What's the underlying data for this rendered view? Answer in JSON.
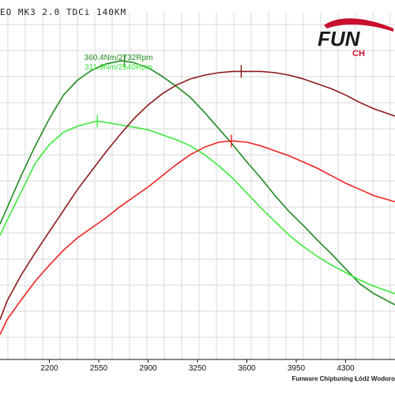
{
  "page": {
    "title": "EO MK3 2.0 TDCi 140KM",
    "logo_text_top": "FUN",
    "logo_text_bottom": "CH",
    "footer": "Funware Chiptuning Łódź Wodoro"
  },
  "colors": {
    "background": "#ffffff",
    "grid": "#d9d9d9",
    "tuned_torque": "#1f8a1f",
    "stock_torque": "#3ee83e",
    "tuned_power": "#8b1a1a",
    "stock_power": "#ee2222",
    "brand": "#c8102e"
  },
  "chart_data": {
    "type": "line",
    "title": "EO MK3 2.0 TDCi 140KM",
    "xlabel": "",
    "ylabel": "",
    "x_ticks": [
      2200,
      2550,
      2900,
      3250,
      3600,
      3950,
      4300
    ],
    "xlim": [
      1850,
      4650
    ],
    "grid": true,
    "peak_labels": [
      {
        "text": "360.4Nm/2732Rpm",
        "color": "#1f8a1f"
      },
      {
        "text": "311.9Nm/2540Rpm",
        "color": "#3ee83e"
      }
    ],
    "series": [
      {
        "name": "",
        "color": "#1f8a1f",
        "peak": [
          2732,
          360.4
        ],
        "x": [
          1850,
          1900,
          2000,
          2100,
          2200,
          2300,
          2400,
          2500,
          2600,
          2700,
          2732,
          2800,
          2900,
          3000,
          3100,
          3200,
          3300,
          3400,
          3500,
          3600,
          3700,
          3800,
          3900,
          4000,
          4100,
          4200,
          4300,
          4400,
          4500,
          4650
        ],
        "y": [
          229,
          242,
          268,
          292,
          314,
          333,
          345,
          353,
          358,
          360.4,
          360.4,
          359,
          355,
          348,
          340,
          331,
          319,
          306,
          293,
          279,
          266,
          252,
          239,
          228,
          216,
          205,
          193,
          181,
          173,
          164
        ]
      },
      {
        "name": "",
        "color": "#3ee83e",
        "peak": [
          2540,
          311.9
        ],
        "x": [
          1850,
          1900,
          2000,
          2100,
          2200,
          2300,
          2400,
          2500,
          2540,
          2600,
          2700,
          2800,
          2900,
          3000,
          3100,
          3200,
          3300,
          3400,
          3500,
          3600,
          3700,
          3800,
          3900,
          4000,
          4100,
          4200,
          4300,
          4400,
          4500,
          4650
        ],
        "y": [
          220,
          232,
          255,
          278,
          293,
          303,
          308,
          311,
          311.9,
          311,
          309,
          307,
          305,
          301,
          297,
          292,
          285,
          276,
          266,
          254,
          242,
          231,
          220,
          211,
          203,
          196,
          190,
          184,
          179,
          173
        ]
      },
      {
        "name": "",
        "color": "#8b1a1a",
        "peak": [
          3560,
          352
        ],
        "x": [
          1850,
          1900,
          2000,
          2100,
          2200,
          2300,
          2400,
          2500,
          2600,
          2700,
          2800,
          2900,
          3000,
          3100,
          3200,
          3300,
          3400,
          3500,
          3560,
          3600,
          3700,
          3800,
          3900,
          4000,
          4100,
          4200,
          4300,
          4400,
          4500,
          4650
        ],
        "y": [
          152,
          167,
          188,
          206,
          223,
          240,
          257,
          272,
          287,
          301,
          314,
          325,
          334,
          341,
          346,
          349,
          351,
          352,
          352,
          352,
          352,
          351,
          349,
          346,
          342,
          338,
          333,
          327,
          322,
          316
        ]
      },
      {
        "name": "",
        "color": "#ee2222",
        "peak": [
          3490,
          296
        ],
        "x": [
          1850,
          1900,
          2000,
          2100,
          2200,
          2300,
          2400,
          2500,
          2600,
          2700,
          2800,
          2900,
          3000,
          3100,
          3200,
          3300,
          3400,
          3490,
          3500,
          3600,
          3700,
          3800,
          3900,
          4000,
          4100,
          4200,
          4300,
          4400,
          4500,
          4650
        ],
        "y": [
          140,
          152,
          168,
          183,
          196,
          208,
          218,
          226,
          234,
          243,
          251,
          259,
          268,
          277,
          285,
          291,
          295,
          296,
          296,
          295,
          292,
          288,
          284,
          279,
          274,
          268,
          262,
          257,
          252,
          247
        ]
      }
    ]
  }
}
